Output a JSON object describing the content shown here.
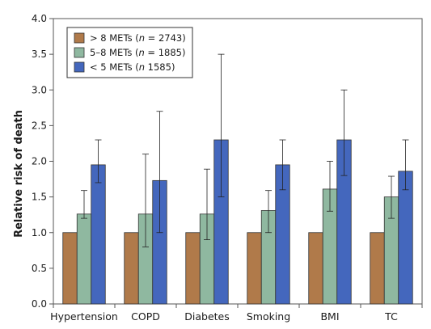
{
  "chart_data": {
    "type": "bar",
    "title": "",
    "xlabel": "",
    "ylabel": "Relative risk of death",
    "ylim": [
      0,
      4.0
    ],
    "yticks": [
      "0.0",
      "0.5",
      "1.0",
      "1.5",
      "2.0",
      "2.5",
      "3.0",
      "3.5",
      "4.0"
    ],
    "ytick_values": [
      0,
      0.5,
      1.0,
      1.5,
      2.0,
      2.5,
      3.0,
      3.5,
      4.0
    ],
    "categories": [
      "Hypertension",
      "COPD",
      "Diabetes",
      "Smoking",
      "BMI",
      "TC"
    ],
    "grid": false,
    "legend_position": "top-left",
    "series": [
      {
        "name": "> 8 METs",
        "legend_prefix": "> 8 METs (",
        "legend_n": "n",
        "legend_suffix": " = 2743)",
        "color": "#b07a4a",
        "values": [
          1.0,
          1.0,
          1.0,
          1.0,
          1.0,
          1.0
        ],
        "err_low": [
          null,
          null,
          null,
          null,
          null,
          null
        ],
        "err_high": [
          null,
          null,
          null,
          null,
          null,
          null
        ]
      },
      {
        "name": "5–8 METs",
        "legend_prefix": "5–8 METs (",
        "legend_n": "n",
        "legend_suffix": " = 1885)",
        "color": "#8fb8a0",
        "values": [
          1.26,
          1.26,
          1.26,
          1.31,
          1.61,
          1.5
        ],
        "err_low": [
          1.2,
          0.8,
          0.9,
          1.0,
          1.3,
          1.2
        ],
        "err_high": [
          1.59,
          2.1,
          1.89,
          1.59,
          2.0,
          1.79
        ]
      },
      {
        "name": "< 5 METs",
        "legend_prefix": "< 5 METs (",
        "legend_n": "n",
        "legend_suffix": " 1585)",
        "color": "#4467bd",
        "values": [
          1.95,
          1.73,
          2.3,
          1.95,
          2.3,
          1.86
        ],
        "err_low": [
          1.7,
          1.0,
          1.5,
          1.6,
          1.8,
          1.6
        ],
        "err_high": [
          2.3,
          2.7,
          3.5,
          2.3,
          3.0,
          2.3
        ]
      }
    ]
  }
}
